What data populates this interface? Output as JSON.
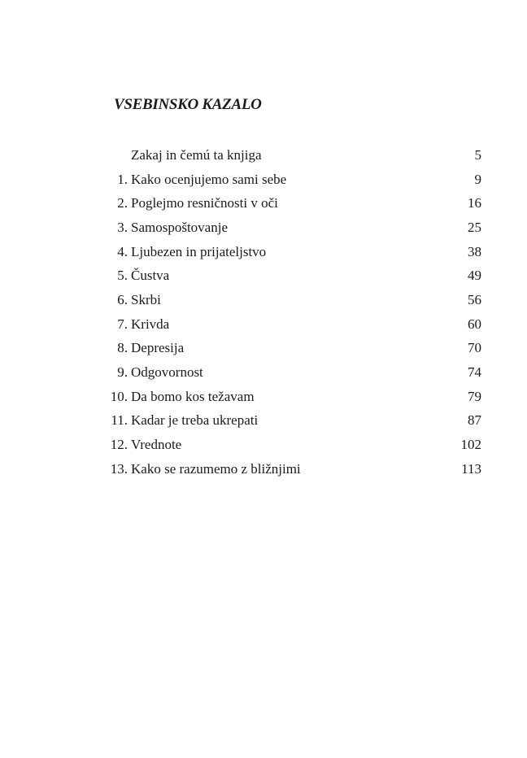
{
  "title": "VSEBINSKO KAZALO",
  "entries": [
    {
      "num": "",
      "title": "Zakaj in čemú ta knjiga",
      "page": "5"
    },
    {
      "num": "1.",
      "title": "Kako ocenjujemo sami sebe",
      "page": "9"
    },
    {
      "num": "2.",
      "title": "Poglejmo resničnosti v oči",
      "page": "16"
    },
    {
      "num": "3.",
      "title": "Samospoštovanje",
      "page": "25"
    },
    {
      "num": "4.",
      "title": "Ljubezen in prijateljstvo",
      "page": "38"
    },
    {
      "num": "5.",
      "title": "Čustva",
      "page": "49"
    },
    {
      "num": "6.",
      "title": "Skrbi",
      "page": "56"
    },
    {
      "num": "7.",
      "title": "Krivda",
      "page": "60"
    },
    {
      "num": "8.",
      "title": "Depresija",
      "page": "70"
    },
    {
      "num": "9.",
      "title": "Odgovornost",
      "page": "74"
    },
    {
      "num": "10.",
      "title": "Da bomo kos težavam",
      "page": "79"
    },
    {
      "num": "11.",
      "title": "Kadar je treba ukrepati",
      "page": "87"
    },
    {
      "num": "12.",
      "title": "Vrednote",
      "page": "102"
    },
    {
      "num": "13.",
      "title": "Kako se razumemo z bližnjimi",
      "page": "113"
    }
  ]
}
